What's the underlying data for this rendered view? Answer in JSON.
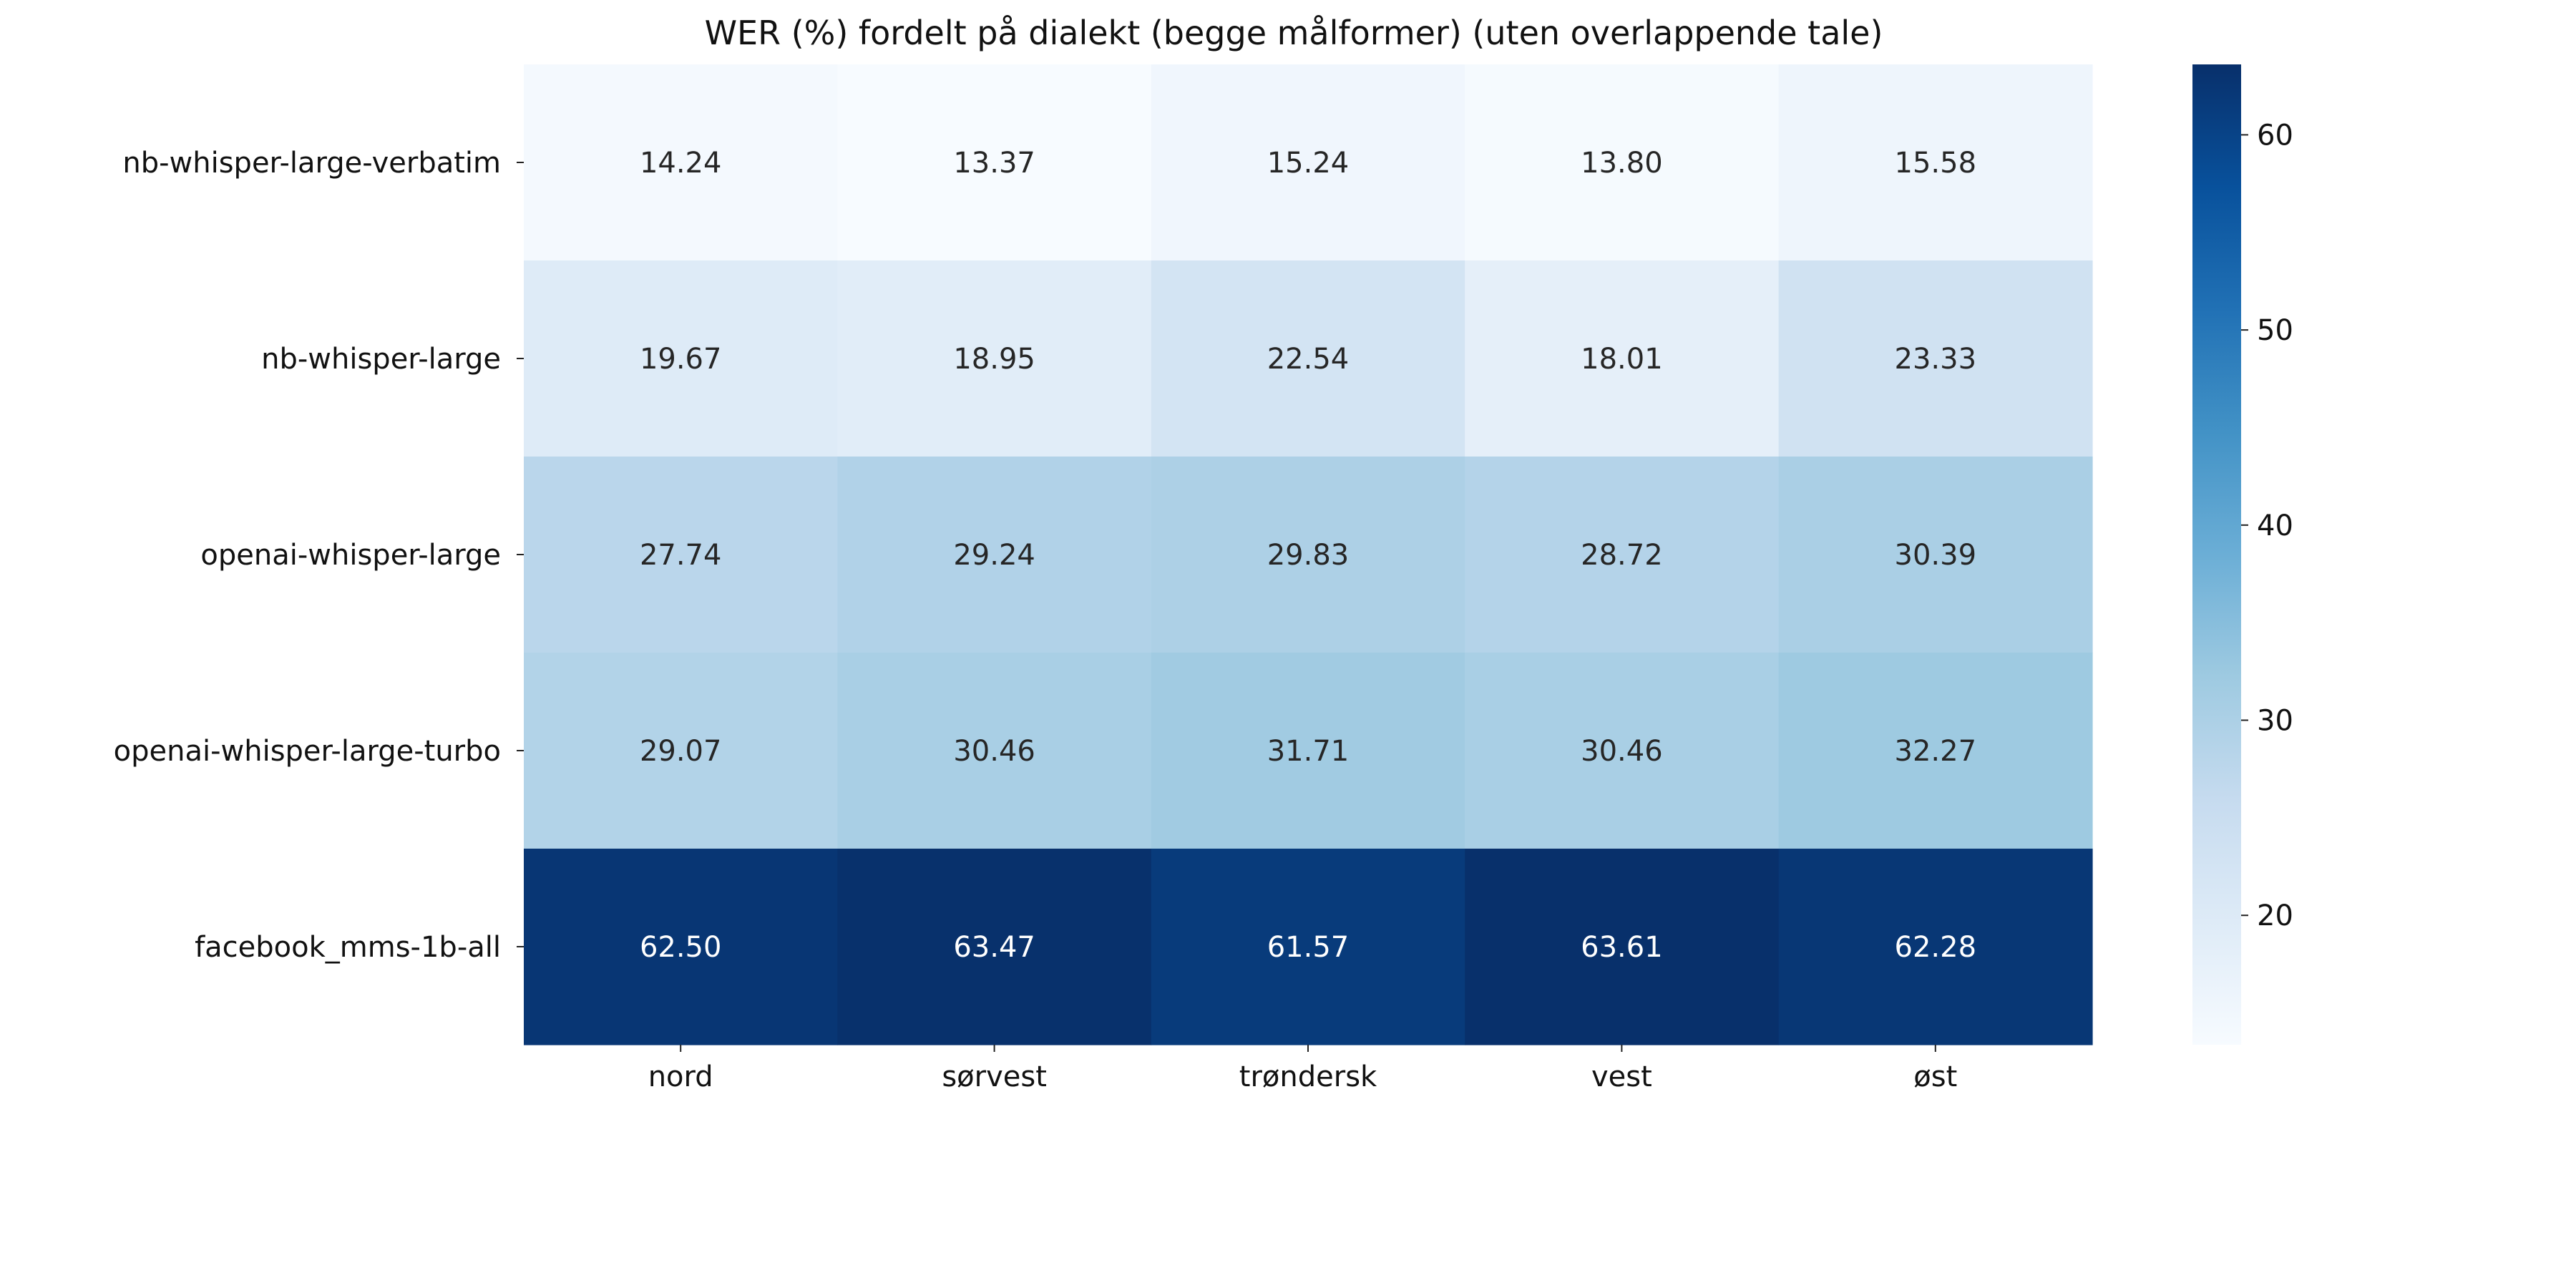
{
  "chart_data": {
    "type": "heatmap",
    "title": "WER (%) fordelt på dialekt (begge målformer) (uten overlappende tale)",
    "xlabel": "",
    "ylabel": "",
    "columns": [
      "nord",
      "sørvest",
      "trøndersk",
      "vest",
      "øst"
    ],
    "rows": [
      "nb-whisper-large-verbatim",
      "nb-whisper-large",
      "openai-whisper-large",
      "openai-whisper-large-turbo",
      "facebook_mms-1b-all"
    ],
    "values": [
      [
        14.24,
        13.37,
        15.24,
        13.8,
        15.58
      ],
      [
        19.67,
        18.95,
        22.54,
        18.01,
        23.33
      ],
      [
        27.74,
        29.24,
        29.83,
        28.72,
        30.39
      ],
      [
        29.07,
        30.46,
        31.71,
        30.46,
        32.27
      ],
      [
        62.5,
        63.47,
        61.57,
        63.61,
        62.28
      ]
    ],
    "value_labels": [
      [
        "14.24",
        "13.37",
        "15.24",
        "13.80",
        "15.58"
      ],
      [
        "19.67",
        "18.95",
        "22.54",
        "18.01",
        "23.33"
      ],
      [
        "27.74",
        "29.24",
        "29.83",
        "28.72",
        "30.39"
      ],
      [
        "29.07",
        "30.46",
        "31.71",
        "30.46",
        "32.27"
      ],
      [
        "62.50",
        "63.47",
        "61.57",
        "63.61",
        "62.28"
      ]
    ],
    "colormap": "Blues",
    "colorbar": {
      "range": [
        13.37,
        63.61
      ],
      "ticks": [
        20,
        30,
        40,
        50,
        60
      ],
      "tick_labels": [
        "20",
        "30",
        "40",
        "50",
        "60"
      ]
    },
    "grid": false
  }
}
